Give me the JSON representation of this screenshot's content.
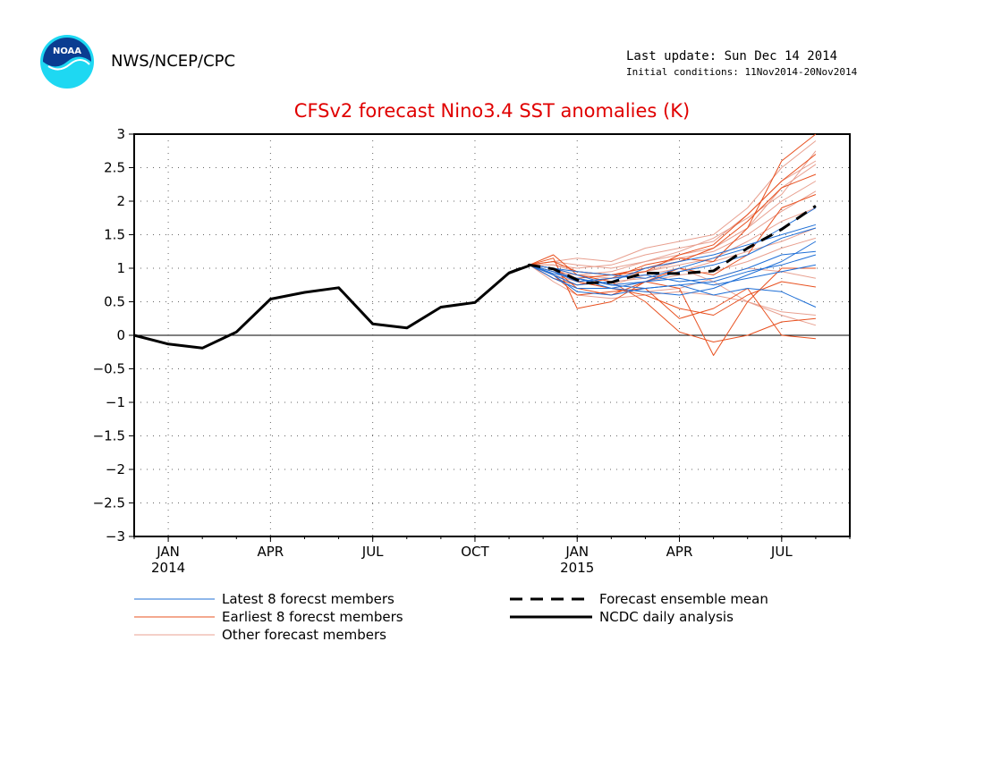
{
  "header": {
    "logo_text": "NOAA",
    "agency": "NWS/NCEP/CPC",
    "last_update": "Last update: Sun Dec 14 2014",
    "initial_conditions": "Initial conditions: 11Nov2014-20Nov2014"
  },
  "colors": {
    "title": "#e00000",
    "latest": "#1f6fd6",
    "earliest": "#e8501f",
    "other": "#e8a090",
    "analysis": "#000000",
    "mean": "#000000"
  },
  "chart_data": {
    "type": "line",
    "title": "CFSv2 forecast Nino3.4 SST anomalies (K)",
    "xlabel": "",
    "ylabel": "",
    "xlim": [
      0,
      21
    ],
    "ylim": [
      -3,
      3
    ],
    "x_ticks": [
      {
        "x": 1,
        "label": "JAN",
        "year": "2014"
      },
      {
        "x": 4,
        "label": "APR",
        "year": ""
      },
      {
        "x": 7,
        "label": "JUL",
        "year": ""
      },
      {
        "x": 10,
        "label": "OCT",
        "year": ""
      },
      {
        "x": 13,
        "label": "JAN",
        "year": "2015"
      },
      {
        "x": 16,
        "label": "APR",
        "year": ""
      },
      {
        "x": 19,
        "label": "JUL",
        "year": ""
      }
    ],
    "y_ticks": [
      3,
      2.5,
      2,
      1.5,
      1,
      0.5,
      0,
      -0.5,
      -1,
      -1.5,
      -2,
      -2.5,
      -3
    ],
    "grid": true,
    "zero_line": true,
    "series": [
      {
        "name": "NCDC daily analysis",
        "style": "analysis",
        "x": [
          0,
          1,
          2,
          3,
          4,
          5,
          6,
          7,
          8,
          9,
          10,
          11,
          11.6
        ],
        "y": [
          0.0,
          -0.13,
          -0.19,
          0.05,
          0.54,
          0.64,
          0.71,
          0.17,
          0.11,
          0.42,
          0.49,
          0.93,
          1.04
        ]
      },
      {
        "name": "Forecast ensemble mean",
        "style": "mean",
        "x": [
          11,
          11.6,
          12.3,
          13.2,
          14,
          15,
          16,
          17,
          18,
          19,
          20
        ],
        "y": [
          0.93,
          1.05,
          0.99,
          0.78,
          0.79,
          0.93,
          0.92,
          0.96,
          1.3,
          1.58,
          1.93
        ]
      },
      {
        "name": "Latest 8 forecst members",
        "style": "latest",
        "members": [
          {
            "x": [
              11.6,
              12.3,
              13,
              14,
              15,
              16,
              17,
              18,
              19,
              20
            ],
            "y": [
              1.05,
              0.9,
              0.65,
              0.6,
              0.7,
              0.75,
              0.6,
              0.7,
              0.65,
              0.42
            ]
          },
          {
            "x": [
              11.6,
              12.3,
              13,
              14,
              15,
              16,
              17,
              18,
              19,
              20
            ],
            "y": [
              1.05,
              0.95,
              0.85,
              0.75,
              0.8,
              0.95,
              1.05,
              1.2,
              1.45,
              1.6
            ]
          },
          {
            "x": [
              11.6,
              12.3,
              13,
              14,
              15,
              16,
              17,
              18,
              19,
              20
            ],
            "y": [
              1.05,
              0.85,
              0.7,
              0.7,
              0.65,
              0.6,
              0.7,
              0.9,
              1.1,
              1.4
            ]
          },
          {
            "x": [
              11.6,
              12.3,
              13,
              14,
              15,
              16,
              17,
              18,
              19,
              20
            ],
            "y": [
              1.05,
              1.0,
              0.95,
              0.9,
              0.85,
              1.0,
              1.15,
              1.3,
              1.6,
              1.9
            ]
          },
          {
            "x": [
              11.6,
              12.3,
              13,
              14,
              15,
              16,
              17,
              18,
              19,
              20
            ],
            "y": [
              1.05,
              0.95,
              0.8,
              0.85,
              0.9,
              0.8,
              0.85,
              1.0,
              1.2,
              1.25
            ]
          },
          {
            "x": [
              11.6,
              12.3,
              13,
              14,
              15,
              16,
              17,
              18,
              19,
              20
            ],
            "y": [
              1.05,
              0.9,
              0.75,
              0.8,
              1.0,
              1.1,
              1.2,
              1.35,
              1.5,
              1.65
            ]
          },
          {
            "x": [
              11.6,
              12.3,
              13,
              14,
              15,
              16,
              17,
              18,
              19,
              20
            ],
            "y": [
              1.05,
              1.0,
              0.9,
              0.75,
              0.7,
              0.75,
              0.8,
              0.95,
              1.05,
              1.2
            ]
          },
          {
            "x": [
              11.6,
              12.3,
              13,
              14,
              15,
              16,
              17,
              18,
              19,
              20
            ],
            "y": [
              1.05,
              0.92,
              0.85,
              0.7,
              0.8,
              0.85,
              0.75,
              0.85,
              0.95,
              1.05
            ]
          }
        ]
      },
      {
        "name": "Earliest 8 forecst members",
        "style": "earliest",
        "members": [
          {
            "x": [
              11.6,
              12.3,
              13,
              14,
              15,
              16,
              17,
              18,
              19,
              20
            ],
            "y": [
              1.05,
              1.2,
              0.9,
              0.8,
              0.5,
              0.05,
              -0.1,
              0.0,
              0.2,
              0.25
            ]
          },
          {
            "x": [
              11.6,
              12.3,
              13,
              14,
              15,
              16,
              17,
              18,
              19,
              20
            ],
            "y": [
              1.05,
              1.0,
              0.8,
              0.7,
              0.6,
              0.4,
              0.3,
              0.6,
              0.8,
              0.72
            ]
          },
          {
            "x": [
              11.6,
              12.3,
              13,
              14,
              15,
              16,
              17,
              18,
              19,
              20
            ],
            "y": [
              1.05,
              0.9,
              0.6,
              0.65,
              0.7,
              0.25,
              0.4,
              0.7,
              0.0,
              -0.05
            ]
          },
          {
            "x": [
              11.6,
              12.3,
              13,
              14,
              15,
              16,
              17,
              18,
              19,
              20
            ],
            "y": [
              1.05,
              1.1,
              0.95,
              0.9,
              1.0,
              1.1,
              1.3,
              1.7,
              2.2,
              2.4
            ]
          },
          {
            "x": [
              11.6,
              12.3,
              13,
              14,
              15,
              16,
              17,
              18,
              19,
              20
            ],
            "y": [
              1.05,
              0.95,
              0.85,
              0.9,
              0.95,
              1.2,
              1.35,
              1.8,
              2.3,
              2.7
            ]
          },
          {
            "x": [
              11.6,
              12.3,
              13,
              14,
              15,
              16,
              17,
              18,
              19,
              20
            ],
            "y": [
              1.05,
              1.0,
              0.7,
              0.6,
              0.8,
              0.7,
              -0.3,
              0.5,
              1.0,
              1.0
            ]
          },
          {
            "x": [
              11.6,
              12.3,
              13,
              14,
              15,
              16,
              17,
              18,
              19,
              20
            ],
            "y": [
              1.05,
              1.15,
              0.4,
              0.5,
              0.8,
              1.0,
              0.9,
              1.2,
              1.9,
              2.1
            ]
          },
          {
            "x": [
              11.6,
              12.3,
              13,
              14,
              15,
              16,
              17,
              18,
              19,
              20
            ],
            "y": [
              1.05,
              0.85,
              0.75,
              0.85,
              1.05,
              1.15,
              1.1,
              1.6,
              2.6,
              3.0
            ]
          }
        ]
      },
      {
        "name": "Other forecast members",
        "style": "other",
        "members": [
          {
            "x": [
              11.6,
              12.3,
              13,
              14,
              15,
              16,
              17,
              18,
              19,
              20
            ],
            "y": [
              1.05,
              1.1,
              1.15,
              1.1,
              1.3,
              1.4,
              1.5,
              1.9,
              2.5,
              2.9
            ]
          },
          {
            "x": [
              11.6,
              12.3,
              13,
              14,
              15,
              16,
              17,
              18,
              19,
              20
            ],
            "y": [
              1.05,
              1.05,
              1.0,
              1.05,
              1.2,
              1.3,
              1.4,
              1.8,
              2.3,
              2.6
            ]
          },
          {
            "x": [
              11.6,
              12.3,
              13,
              14,
              15,
              16,
              17,
              18,
              19,
              20
            ],
            "y": [
              1.05,
              0.95,
              0.9,
              0.95,
              1.1,
              1.2,
              1.3,
              1.6,
              2.0,
              2.3
            ]
          },
          {
            "x": [
              11.6,
              12.3,
              13,
              14,
              15,
              16,
              17,
              18,
              19,
              20
            ],
            "y": [
              1.05,
              0.9,
              0.8,
              0.85,
              0.95,
              1.05,
              1.15,
              1.4,
              1.7,
              1.9
            ]
          },
          {
            "x": [
              11.6,
              12.3,
              13,
              14,
              15,
              16,
              17,
              18,
              19,
              20
            ],
            "y": [
              1.05,
              0.85,
              0.7,
              0.7,
              0.8,
              0.9,
              0.95,
              1.1,
              1.3,
              1.45
            ]
          },
          {
            "x": [
              11.6,
              12.3,
              13,
              14,
              15,
              16,
              17,
              18,
              19,
              20
            ],
            "y": [
              1.05,
              0.8,
              0.6,
              0.55,
              0.6,
              0.65,
              0.6,
              0.5,
              0.3,
              0.15
            ]
          },
          {
            "x": [
              11.6,
              12.3,
              13,
              14,
              15,
              16,
              17,
              18,
              19,
              20
            ],
            "y": [
              1.05,
              1.0,
              0.85,
              0.75,
              0.9,
              1.0,
              0.8,
              0.5,
              0.35,
              0.3
            ]
          },
          {
            "x": [
              11.6,
              12.3,
              13,
              14,
              15,
              16,
              17,
              18,
              19,
              20
            ],
            "y": [
              1.05,
              1.1,
              1.05,
              1.0,
              1.1,
              1.25,
              1.45,
              1.75,
              2.1,
              2.75
            ]
          },
          {
            "x": [
              11.6,
              12.3,
              13,
              14,
              15,
              16,
              17,
              18,
              19,
              20
            ],
            "y": [
              1.05,
              0.95,
              0.8,
              0.7,
              0.65,
              0.7,
              0.85,
              1.0,
              0.95,
              0.85
            ]
          },
          {
            "x": [
              11.6,
              12.3,
              13,
              14,
              15,
              16,
              17,
              18,
              19,
              20
            ],
            "y": [
              1.05,
              1.05,
              0.95,
              0.9,
              1.0,
              1.15,
              1.25,
              1.5,
              1.85,
              2.15
            ]
          },
          {
            "x": [
              11.6,
              12.3,
              13,
              14,
              15,
              16,
              17,
              18,
              19,
              20
            ],
            "y": [
              1.05,
              0.9,
              0.75,
              0.8,
              0.85,
              0.95,
              1.1,
              1.25,
              1.4,
              1.6
            ]
          },
          {
            "x": [
              11.6,
              12.3,
              13,
              14,
              15,
              16,
              17,
              18,
              19,
              20
            ],
            "y": [
              1.05,
              1.0,
              0.9,
              0.85,
              0.95,
              1.1,
              1.3,
              1.6,
              2.2,
              2.55
            ]
          }
        ]
      }
    ],
    "legend": {
      "placement": "bottom",
      "items": [
        {
          "label": "Latest 8 forecst members",
          "style": "latest"
        },
        {
          "label": "Forecast ensemble mean",
          "style": "mean"
        },
        {
          "label": "Earliest 8 forecst members",
          "style": "earliest"
        },
        {
          "label": "NCDC daily analysis",
          "style": "analysis"
        },
        {
          "label": "Other forecast members",
          "style": "other"
        }
      ]
    }
  }
}
